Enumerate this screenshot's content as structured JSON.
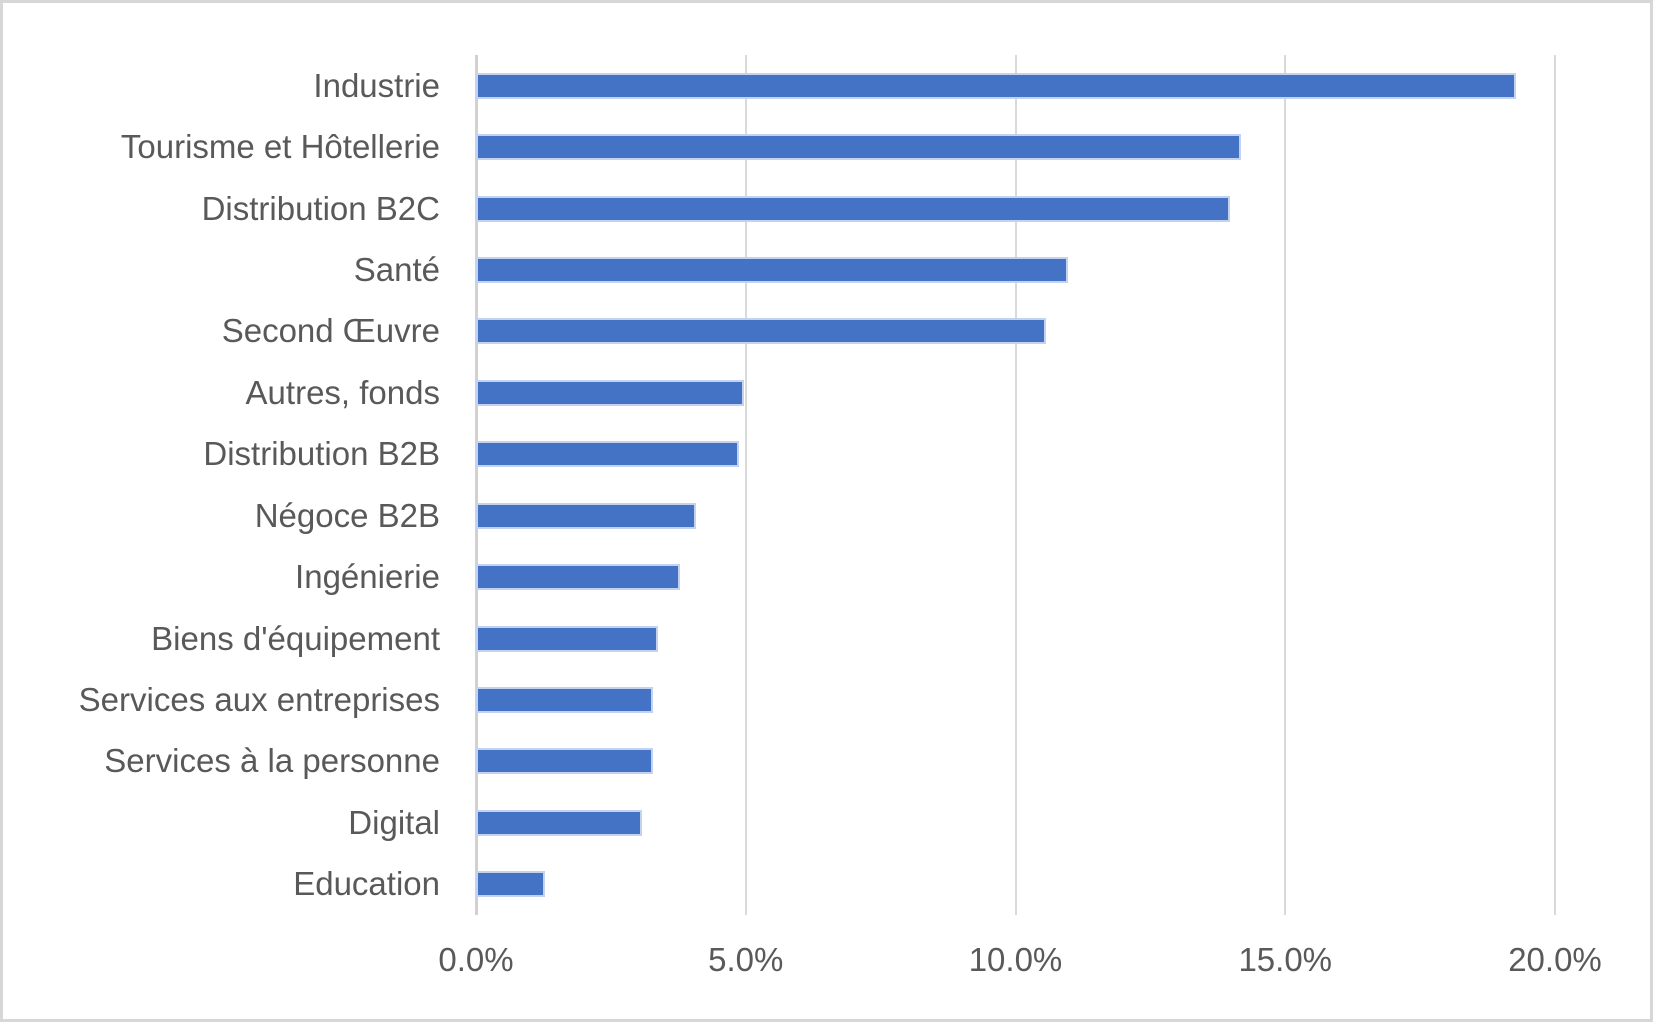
{
  "chart_data": {
    "type": "bar",
    "orientation": "horizontal",
    "title": "",
    "xlabel": "",
    "ylabel": "",
    "categories": [
      "Industrie",
      "Tourisme et Hôtellerie",
      "Distribution B2C",
      "Santé",
      "Second Œuvre",
      "Autres, fonds",
      "Distribution B2B",
      "Négoce B2B",
      "Ingénierie",
      "Biens d'équipement",
      "Services aux entreprises",
      "Services à la personne",
      "Digital",
      "Education"
    ],
    "values": [
      19.2,
      14.1,
      13.9,
      10.9,
      10.5,
      4.9,
      4.8,
      4.0,
      3.7,
      3.3,
      3.2,
      3.2,
      3.0,
      1.2
    ],
    "value_unit": "%",
    "xlim": [
      0,
      20
    ],
    "x_ticks": [
      0,
      5,
      10,
      15,
      20
    ],
    "x_tick_labels": [
      "0.0%",
      "5.0%",
      "10.0%",
      "15.0%",
      "20.0%"
    ],
    "grid": "vertical-gridlines-on",
    "legend": "none",
    "colors": {
      "bar_fill": "#4472c4",
      "bar_border": "#c3d2ee",
      "gridline": "#d9d9d9",
      "axis_line": "#d1d1d1",
      "text": "#595959",
      "background": "#ffffff",
      "frame_border": "#d7d7d7"
    }
  }
}
